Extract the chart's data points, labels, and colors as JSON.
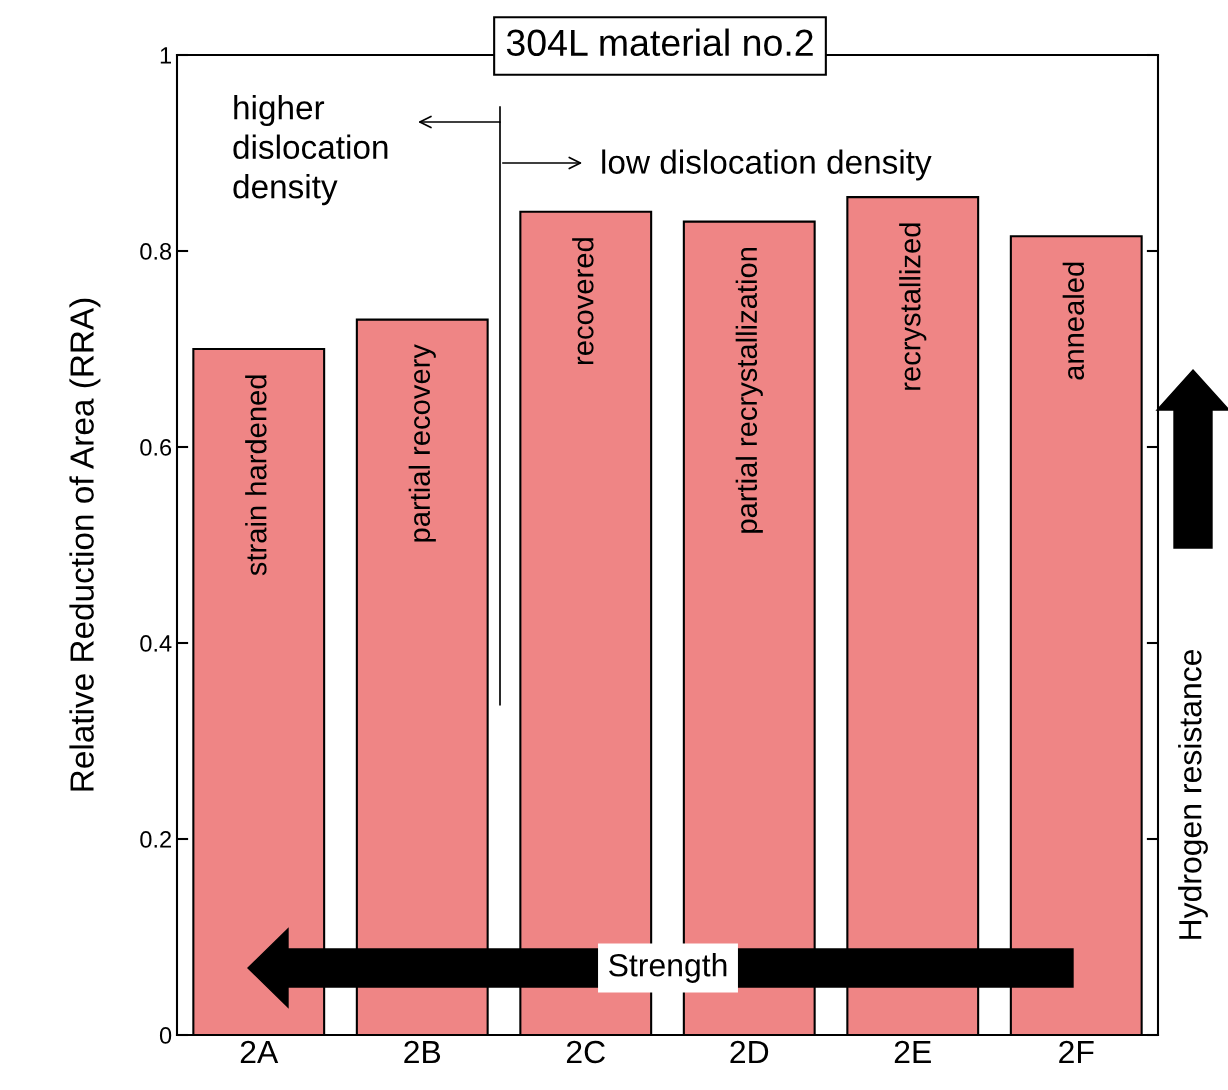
{
  "chart_data": {
    "type": "bar",
    "title": "304L material no.2",
    "ylabel": "Relative Reduction of Area (RRA)",
    "categories": [
      "2A",
      "2B",
      "2C",
      "2D",
      "2E",
      "2F"
    ],
    "values": [
      0.7,
      0.73,
      0.84,
      0.83,
      0.855,
      0.815
    ],
    "color": "#ef8585",
    "ylim": [
      0,
      1
    ],
    "yticks": [
      0,
      0.2,
      0.4,
      0.6,
      0.8,
      1
    ],
    "grid": false,
    "legend": false,
    "annotations": [
      "higher\ndislocation\ndensity",
      "low dislocation density",
      "Strength",
      "Hydrogen resistance",
      "strain hardened",
      "partial recovery",
      "recovered",
      "partial recrystallization",
      "recrystallized",
      "annealed"
    ]
  }
}
